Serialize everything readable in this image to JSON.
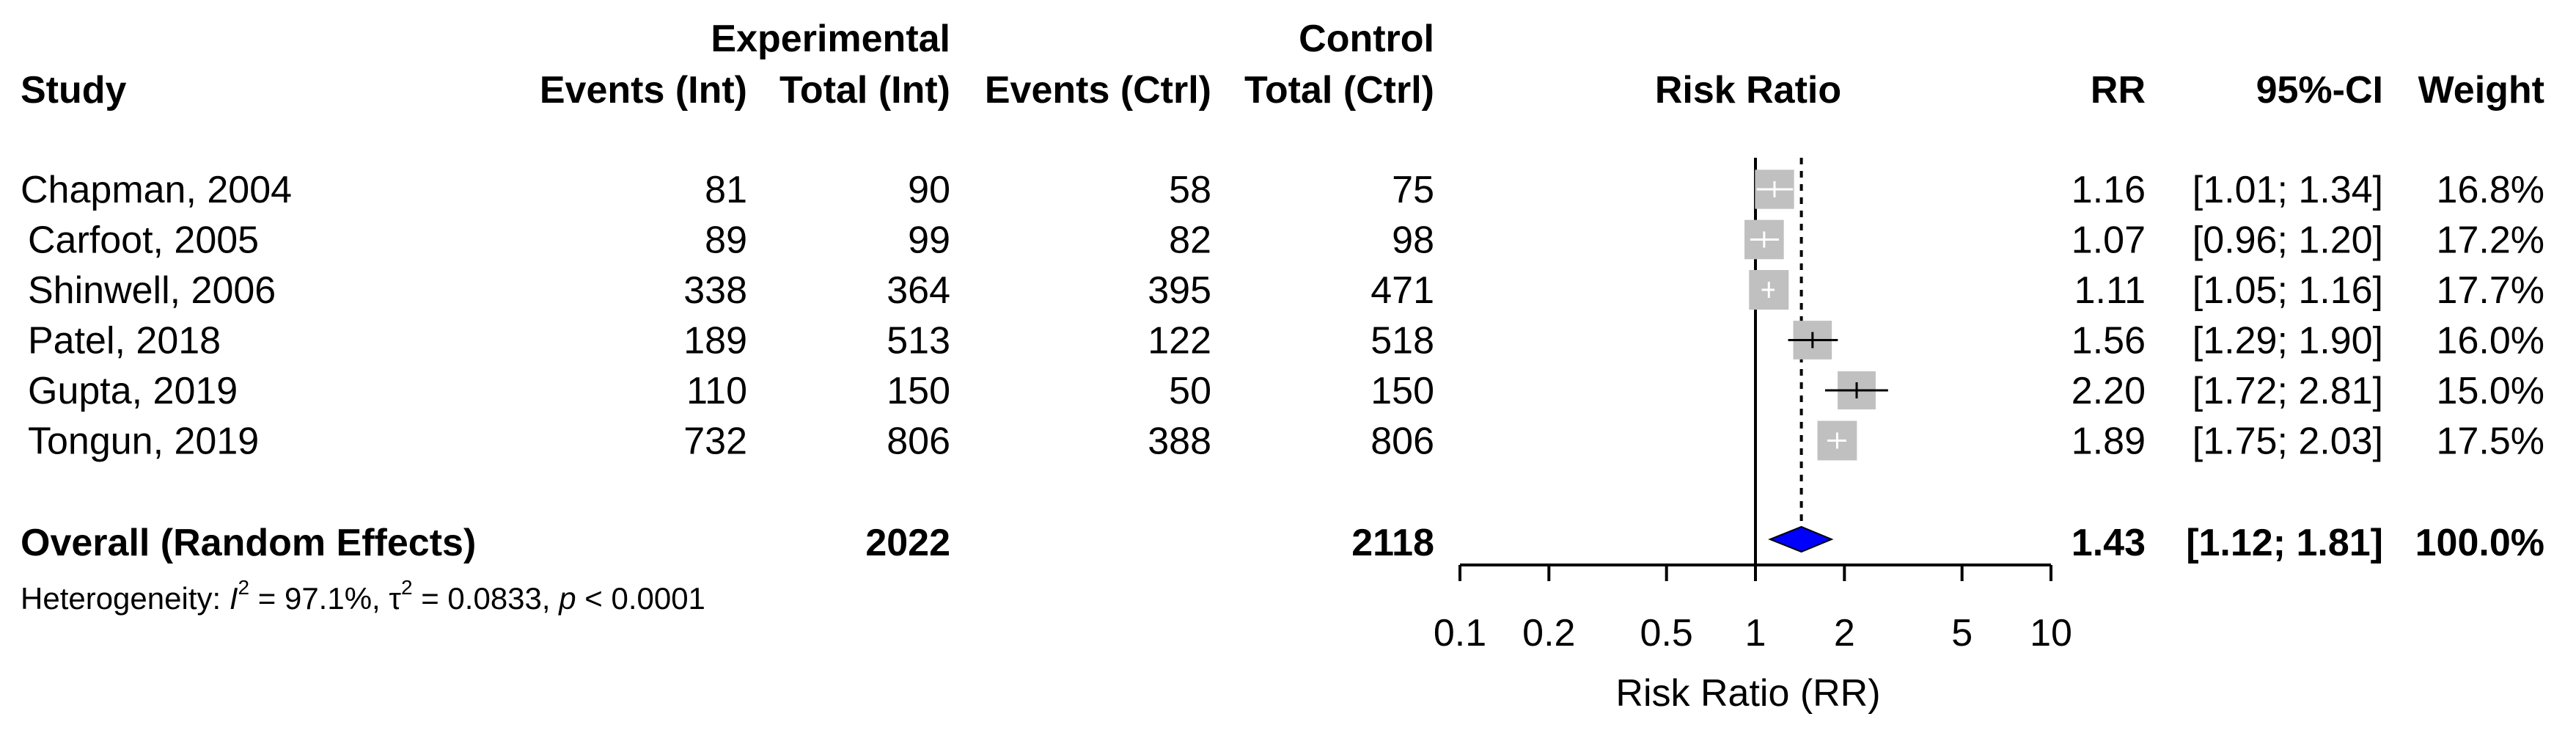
{
  "chart_data": {
    "type": "forest",
    "header": {
      "group_experimental": "Experimental",
      "group_control": "Control",
      "study": "Study",
      "events_int": "Events (Int)",
      "total_int": "Total (Int)",
      "events_ctrl": "Events (Ctrl)",
      "total_ctrl": "Total (Ctrl)",
      "plot": "Risk Ratio",
      "rr": "RR",
      "ci": "95%-CI",
      "weight": "Weight"
    },
    "studies": [
      {
        "study": "Chapman, 2004",
        "events_int": "81",
        "total_int": "90",
        "events_ctrl": "58",
        "total_ctrl": "75",
        "rr": 1.16,
        "lower": 1.01,
        "upper": 1.34,
        "weight": 16.8,
        "rr_text": "1.16",
        "ci_text": "[1.01; 1.34]",
        "weight_text": "16.8%"
      },
      {
        "study": "Carfoot, 2005",
        "events_int": "89",
        "total_int": "99",
        "events_ctrl": "82",
        "total_ctrl": "98",
        "rr": 1.07,
        "lower": 0.96,
        "upper": 1.2,
        "weight": 17.2,
        "rr_text": "1.07",
        "ci_text": "[0.96; 1.20]",
        "weight_text": "17.2%"
      },
      {
        "study": "Shinwell, 2006",
        "events_int": "338",
        "total_int": "364",
        "events_ctrl": "395",
        "total_ctrl": "471",
        "rr": 1.11,
        "lower": 1.05,
        "upper": 1.16,
        "weight": 17.7,
        "rr_text": "1.11",
        "ci_text": "[1.05; 1.16]",
        "weight_text": "17.7%"
      },
      {
        "study": "Patel, 2018",
        "events_int": "189",
        "total_int": "513",
        "events_ctrl": "122",
        "total_ctrl": "518",
        "rr": 1.56,
        "lower": 1.29,
        "upper": 1.9,
        "weight": 16.0,
        "rr_text": "1.56",
        "ci_text": "[1.29; 1.90]",
        "weight_text": "16.0%"
      },
      {
        "study": "Gupta, 2019",
        "events_int": "110",
        "total_int": "150",
        "events_ctrl": "50",
        "total_ctrl": "150",
        "rr": 2.2,
        "lower": 1.72,
        "upper": 2.81,
        "weight": 15.0,
        "rr_text": "2.20",
        "ci_text": "[1.72; 2.81]",
        "weight_text": "15.0%"
      },
      {
        "study": "Tongun, 2019",
        "events_int": "732",
        "total_int": "806",
        "events_ctrl": "388",
        "total_ctrl": "806",
        "rr": 1.89,
        "lower": 1.75,
        "upper": 2.03,
        "weight": 17.5,
        "rr_text": "1.89",
        "ci_text": "[1.75; 2.03]",
        "weight_text": "17.5%"
      }
    ],
    "overall": {
      "label": "Overall (Random Effects)",
      "total_int": "2022",
      "total_ctrl": "2118",
      "rr": 1.43,
      "lower": 1.12,
      "upper": 1.81,
      "rr_text": "1.43",
      "ci_text": "[1.12; 1.81]",
      "weight_text": "100.0%"
    },
    "heterogeneity": {
      "prefix": "Heterogeneity: ",
      "i2_symbol": "I",
      "sup": "2",
      "i2_value": " = 97.1%, ",
      "tau_symbol": "τ",
      "tau_value": " = 0.0833, ",
      "p_symbol": "p",
      "p_value": " < 0.0001"
    },
    "x_axis": {
      "label": "Risk Ratio (RR)",
      "scale": "log",
      "ticks": [
        0.1,
        0.2,
        0.5,
        1,
        2,
        5,
        10
      ],
      "tick_labels": [
        "0.1",
        "0.2",
        "0.5",
        "1",
        "2",
        "5",
        "10"
      ],
      "range": [
        0.1,
        10
      ]
    },
    "reference_line": 1,
    "colors": {
      "study_square": "#c0c0c0",
      "ci_line_inside": "#ffffff",
      "ci_line_outside": "#000000",
      "diamond": "#0000ff",
      "text": "#000000"
    }
  }
}
